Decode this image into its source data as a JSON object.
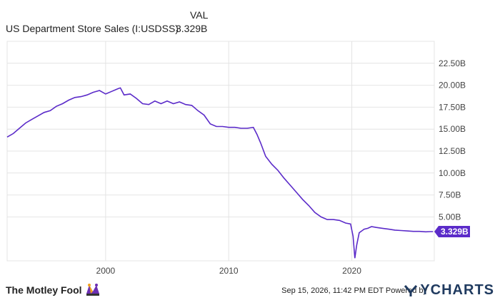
{
  "header": {
    "col_label": "VAL",
    "series_name": "US Department Store Sales (I:USDSS)",
    "series_value": "3.329B"
  },
  "footer": {
    "brand": "The Motley Fool",
    "timestamp": "Sep 15, 2026, 11:42 PM EDT",
    "powered_by": "Powered by",
    "provider": "YCHARTS"
  },
  "colors": {
    "line": "#5b2bc9",
    "grid": "#e4e4e4",
    "axis_text": "#444444"
  },
  "chart_data": {
    "type": "line",
    "title": "",
    "xlabel": "",
    "ylabel": "",
    "xlim": [
      1992.0,
      2026.7
    ],
    "ylim": [
      0,
      25
    ],
    "x_ticks": [
      2000,
      2010,
      2020
    ],
    "x_tick_labels": [
      "2000",
      "2010",
      "2020"
    ],
    "y_ticks": [
      5,
      7.5,
      10,
      12.5,
      15,
      17.5,
      20,
      22.5
    ],
    "y_tick_labels": [
      "5.00B",
      "7.50B",
      "10.00B",
      "12.50B",
      "15.00B",
      "17.50B",
      "20.00B",
      "22.50B"
    ],
    "grid": true,
    "end_label": "3.329B",
    "series": [
      {
        "name": "US Department Store Sales (I:USDSS)",
        "unit": "B",
        "x": [
          1992.0,
          1992.5,
          1993.0,
          1993.5,
          1994.0,
          1994.5,
          1995.0,
          1995.5,
          1996.0,
          1996.5,
          1997.0,
          1997.5,
          1998.0,
          1998.5,
          1999.0,
          1999.5,
          2000.0,
          2000.5,
          2001.0,
          2001.2,
          2001.5,
          2002.0,
          2002.5,
          2003.0,
          2003.5,
          2004.0,
          2004.5,
          2005.0,
          2005.5,
          2006.0,
          2006.5,
          2007.0,
          2007.5,
          2008.0,
          2008.5,
          2009.0,
          2009.5,
          2010.0,
          2010.5,
          2011.0,
          2011.5,
          2012.0,
          2012.3,
          2012.6,
          2013.0,
          2013.5,
          2014.0,
          2014.5,
          2015.0,
          2015.5,
          2016.0,
          2016.5,
          2017.0,
          2017.5,
          2018.0,
          2018.5,
          2019.0,
          2019.5,
          2019.9,
          2020.1,
          2020.25,
          2020.4,
          2020.6,
          2021.0,
          2021.3,
          2021.6,
          2022.0,
          2022.5,
          2023.0,
          2023.5,
          2024.0,
          2024.5,
          2025.0,
          2025.5,
          2026.0,
          2026.4,
          2026.6
        ],
        "values": [
          14.1,
          14.5,
          15.1,
          15.7,
          16.1,
          16.5,
          16.9,
          17.1,
          17.6,
          17.9,
          18.3,
          18.6,
          18.7,
          18.9,
          19.2,
          19.4,
          19.0,
          19.3,
          19.6,
          19.7,
          18.9,
          19.0,
          18.5,
          17.9,
          17.8,
          18.2,
          17.9,
          18.2,
          17.9,
          18.1,
          17.8,
          17.7,
          17.1,
          16.6,
          15.6,
          15.3,
          15.3,
          15.2,
          15.2,
          15.1,
          15.1,
          15.2,
          14.4,
          13.4,
          11.9,
          11.0,
          10.3,
          9.4,
          8.6,
          7.8,
          7.0,
          6.3,
          5.5,
          5.0,
          4.7,
          4.7,
          4.6,
          4.3,
          4.2,
          2.8,
          0.3,
          1.8,
          3.2,
          3.6,
          3.7,
          3.9,
          3.8,
          3.7,
          3.6,
          3.5,
          3.45,
          3.4,
          3.35,
          3.35,
          3.3,
          3.33,
          3.329
        ]
      }
    ]
  }
}
